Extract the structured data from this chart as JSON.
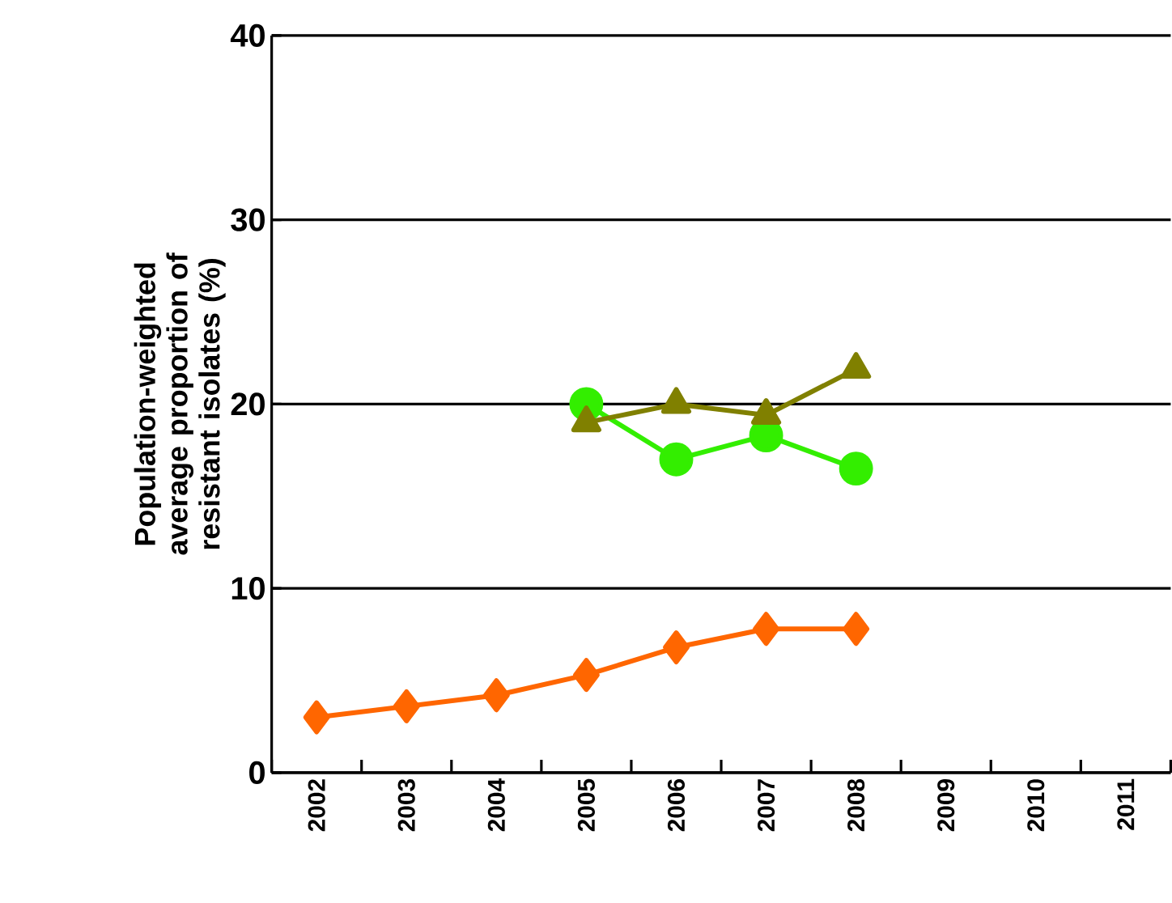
{
  "chart_data": {
    "type": "line",
    "ylabel": "Population-weighted average proportion of resistant isolates (%)",
    "categories": [
      "2002",
      "2003",
      "2004",
      "2005",
      "2006",
      "2007",
      "2008",
      "2009",
      "2010",
      "2011"
    ],
    "ylim": [
      0,
      40
    ],
    "yticks": [
      0,
      10,
      20,
      30,
      40
    ],
    "grid": "y",
    "series": [
      {
        "color": "#ff6600",
        "marker": "diamond",
        "values": [
          3.0,
          3.6,
          4.2,
          5.3,
          6.8,
          7.8,
          7.8,
          null,
          null,
          null
        ]
      },
      {
        "color": "#33ee00",
        "marker": "circle",
        "values": [
          null,
          null,
          null,
          20.0,
          17.0,
          18.3,
          16.5,
          null,
          null,
          null
        ]
      },
      {
        "color": "#808000",
        "marker": "triangle",
        "values": [
          null,
          null,
          null,
          19.0,
          20.0,
          19.4,
          21.9,
          null,
          null,
          null
        ]
      }
    ]
  }
}
